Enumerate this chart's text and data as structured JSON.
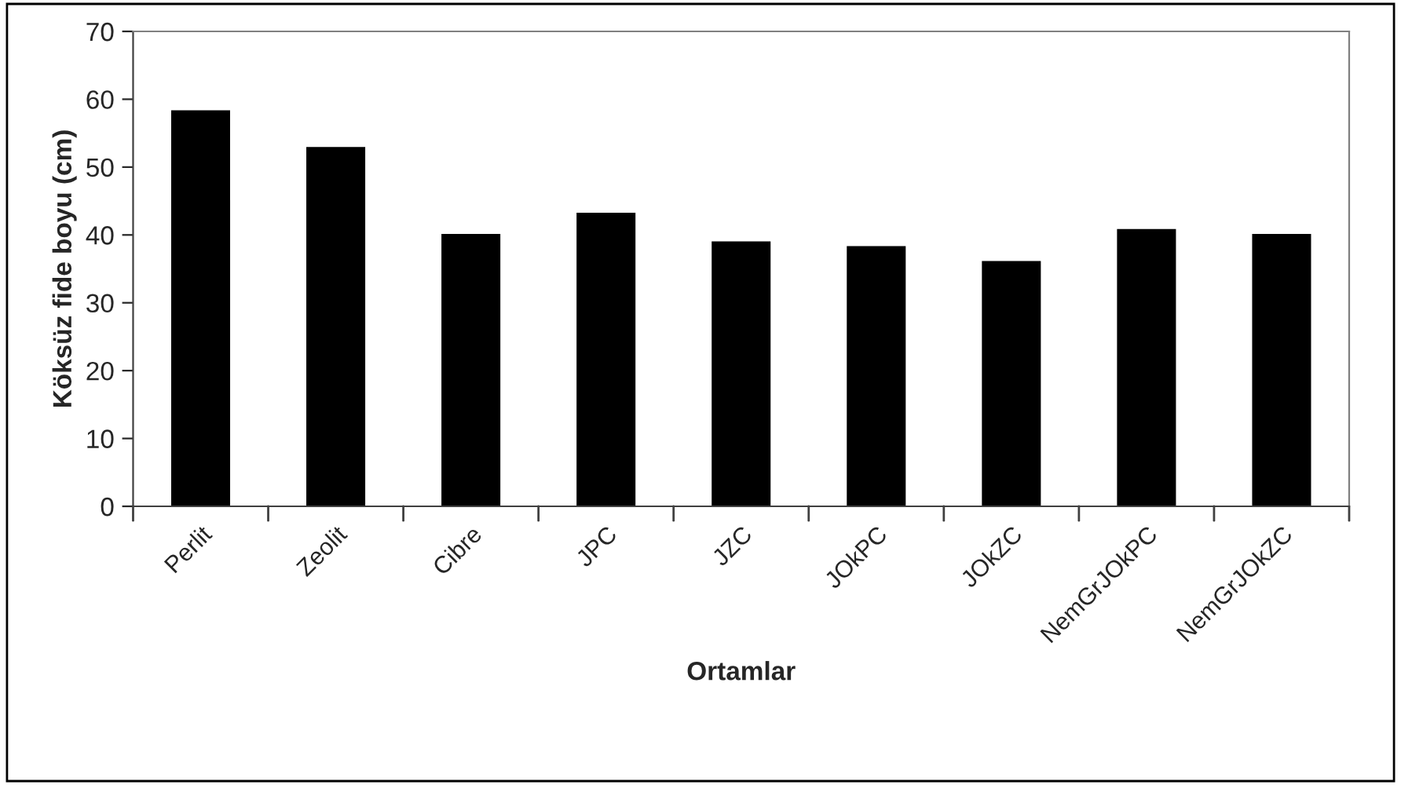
{
  "chart_data": {
    "type": "bar",
    "xlabel": "Ortamlar",
    "ylabel": "Köksüz fide boyu (cm)",
    "categories": [
      "Perlit",
      "Zeolit",
      "Cibre",
      "JPC",
      "JZC",
      "JOkPC",
      "JOkZC",
      "NemGrJOkPC",
      "NemGrJOkZC"
    ],
    "values": [
      58.2,
      52.8,
      40.0,
      43.1,
      38.9,
      38.2,
      36.0,
      40.7,
      40.0
    ],
    "color": "#000000",
    "ylim": [
      0,
      70
    ],
    "yticks": [
      0,
      10,
      20,
      30,
      40,
      50,
      60,
      70
    ],
    "grid": false,
    "legend": false
  }
}
